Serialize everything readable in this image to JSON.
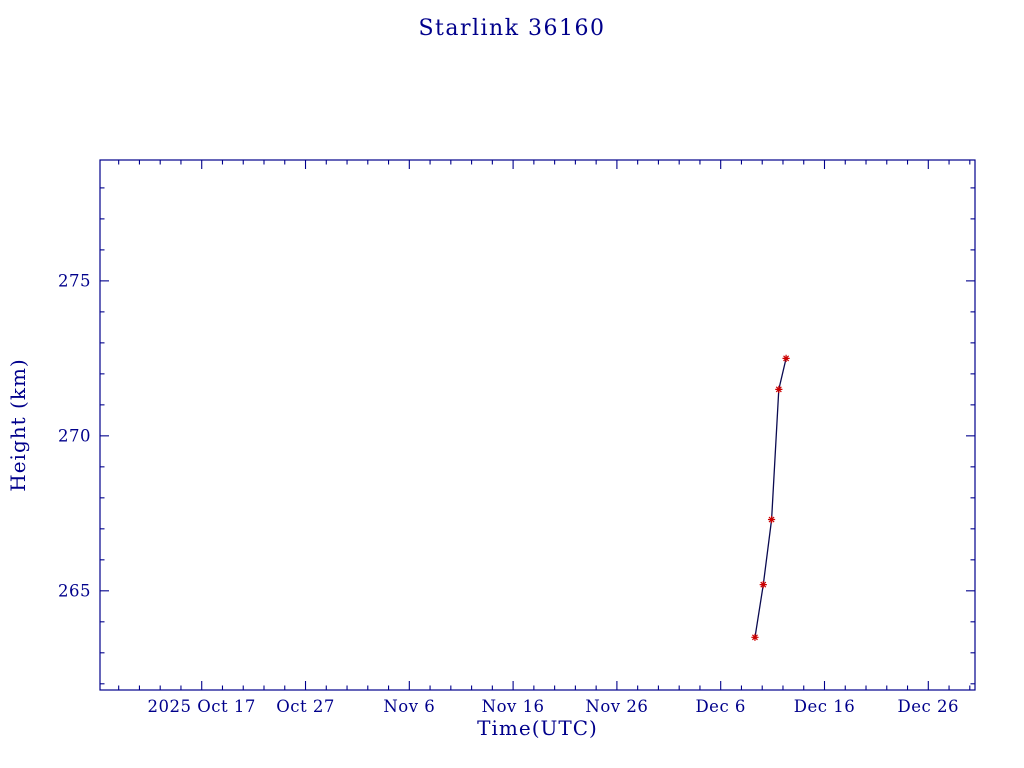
{
  "chart_data": {
    "type": "line",
    "title": "Starlink 36160",
    "xlabel": "Time(UTC)",
    "ylabel": "Height (km)",
    "axis_color": "#00008B",
    "line_color": "#0A0A50",
    "marker_color": "#CC0000",
    "marker": "asterisk",
    "grid": false,
    "legend": "none",
    "x_unit": "days since 2025 Oct 17",
    "x_domain_days": [
      -9.8,
      74.5
    ],
    "x_major_step": 10,
    "x_minor_step": 2,
    "x_ticks": [
      {
        "day": 0,
        "label": "2025 Oct 17"
      },
      {
        "day": 10,
        "label": "Oct 27"
      },
      {
        "day": 20,
        "label": "Nov 6"
      },
      {
        "day": 30,
        "label": "Nov 16"
      },
      {
        "day": 40,
        "label": "Nov 26"
      },
      {
        "day": 50,
        "label": "Dec 6"
      },
      {
        "day": 60,
        "label": "Dec 16"
      },
      {
        "day": 70,
        "label": "Dec 26"
      }
    ],
    "ylim": [
      261.8,
      278.9
    ],
    "y_major_ticks": [
      265,
      270,
      275
    ],
    "y_minor_step": 1,
    "series": [
      {
        "name": "orbit-height",
        "points": [
          {
            "day": 53.3,
            "date": "2025 Dec 9",
            "height_km": 263.5
          },
          {
            "day": 54.1,
            "date": "2025 Dec 10",
            "height_km": 265.2
          },
          {
            "day": 54.9,
            "date": "2025 Dec 11",
            "height_km": 267.3
          },
          {
            "day": 55.6,
            "date": "2025 Dec 11",
            "height_km": 271.5
          },
          {
            "day": 56.3,
            "date": "2025 Dec 12",
            "height_km": 272.5
          }
        ]
      }
    ]
  }
}
